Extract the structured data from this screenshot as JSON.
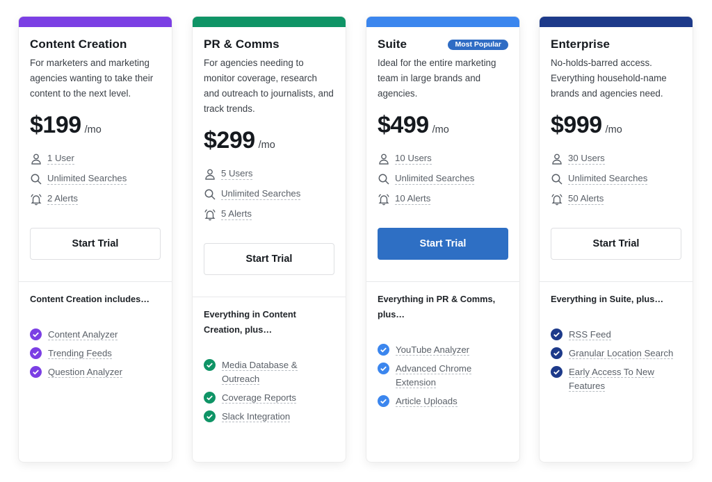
{
  "plans": [
    {
      "name": "Content Creation",
      "badge": "",
      "color": "#7b3fe4",
      "description": "For marketers and marketing agencies wanting to take their content to the next level.",
      "price": "$199",
      "period": "/mo",
      "features": [
        {
          "icon": "user-icon",
          "label": "1 User"
        },
        {
          "icon": "search-icon",
          "label": "Unlimited Searches"
        },
        {
          "icon": "bell-icon",
          "label": "2 Alerts"
        }
      ],
      "cta": "Start Trial",
      "includes_heading": "Content Creation includes…",
      "includes": [
        "Content Analyzer",
        "Trending Feeds",
        "Question Analyzer"
      ]
    },
    {
      "name": "PR & Comms",
      "badge": "",
      "color": "#0f9466",
      "description": "For agencies needing to monitor coverage, research and outreach to journalists, and track trends.",
      "price": "$299",
      "period": "/mo",
      "features": [
        {
          "icon": "user-icon",
          "label": "5 Users"
        },
        {
          "icon": "search-icon",
          "label": "Unlimited Searches"
        },
        {
          "icon": "bell-icon",
          "label": "5 Alerts"
        }
      ],
      "cta": "Start Trial",
      "includes_heading": "Everything in Content Creation, plus…",
      "includes": [
        "Media Database & Outreach",
        "Coverage Reports",
        "Slack Integration"
      ]
    },
    {
      "name": "Suite",
      "badge": "Most Popular",
      "color": "#3b86ee",
      "description": "Ideal for the entire marketing team in large brands and agencies.",
      "price": "$499",
      "period": "/mo",
      "features": [
        {
          "icon": "user-icon",
          "label": "10 Users"
        },
        {
          "icon": "search-icon",
          "label": "Unlimited Searches"
        },
        {
          "icon": "bell-icon",
          "label": "10 Alerts"
        }
      ],
      "cta": "Start Trial",
      "includes_heading": "Everything in PR & Comms, plus…",
      "includes": [
        "YouTube Analyzer",
        "Advanced Chrome Extension",
        "Article Uploads"
      ]
    },
    {
      "name": "Enterprise",
      "badge": "",
      "color": "#1d3a8a",
      "description": "No-holds-barred access. Everything household-name brands and agencies need.",
      "price": "$999",
      "period": "/mo",
      "features": [
        {
          "icon": "user-icon",
          "label": "30 Users"
        },
        {
          "icon": "search-icon",
          "label": "Unlimited Searches"
        },
        {
          "icon": "bell-icon",
          "label": "50 Alerts"
        }
      ],
      "cta": "Start Trial",
      "includes_heading": "Everything in Suite, plus…",
      "includes": [
        "RSS Feed",
        "Granular Location Search",
        "Early Access To New Features"
      ]
    }
  ],
  "colors": {
    "primary_button": "#2e6fc4",
    "badge": "#2f6cc4"
  }
}
